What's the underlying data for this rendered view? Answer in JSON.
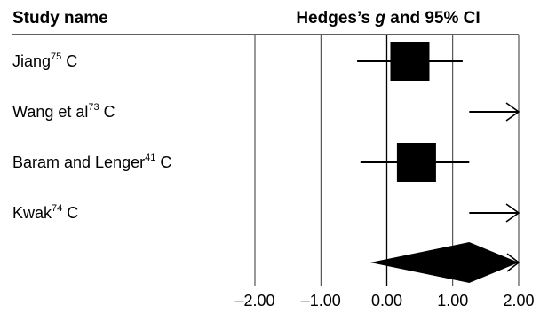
{
  "chart_data": {
    "type": "forest",
    "header_left": "Study name",
    "header_right_prefix": "Hedges’s ",
    "header_right_italic": "g",
    "header_right_suffix": " and 95% CI",
    "xlim": [
      -2.0,
      2.0
    ],
    "ticks": [
      -2.0,
      -1.0,
      0.0,
      1.0,
      2.0
    ],
    "tick_labels": [
      "–2.00",
      "–1.00",
      "0.00",
      "1.00",
      "2.00"
    ],
    "studies": [
      {
        "name": "Jiang",
        "ref": "75",
        "suffix": " C",
        "g": 0.35,
        "lower": -0.45,
        "upper": 1.15,
        "weight": 0.3,
        "arrow_right": false
      },
      {
        "name": "Wang et al",
        "ref": "73",
        "suffix": " C",
        "g": null,
        "lower": 1.25,
        "upper": 2.0,
        "weight": 0.0,
        "arrow_right": true
      },
      {
        "name": "Baram and Lenger",
        "ref": "41",
        "suffix": " C",
        "g": 0.45,
        "lower": -0.4,
        "upper": 1.25,
        "weight": 0.3,
        "arrow_right": false
      },
      {
        "name": "Kwak",
        "ref": "74",
        "suffix": " C",
        "g": null,
        "lower": 1.25,
        "upper": 2.0,
        "weight": 0.0,
        "arrow_right": true
      }
    ],
    "summary": {
      "g": 1.25,
      "lower": -0.25,
      "upper": 2.0
    }
  }
}
